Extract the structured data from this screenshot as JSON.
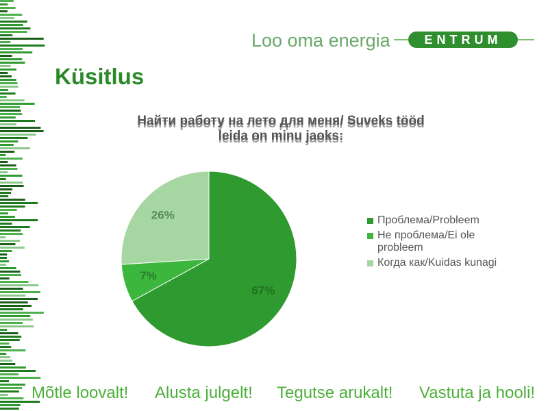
{
  "header": {
    "tagline": "Loo oma energia",
    "logo": "ENTRUM"
  },
  "slide_title": "Küsitlus",
  "chart_data": {
    "type": "pie",
    "title": "Найти работу на лето для меня/ Suveks tööd leida on minu jaoks:",
    "categories": [
      "Проблема/Probleem",
      "Не проблема/Ei ole probleem",
      "Когда как/Kuidas kunagi"
    ],
    "values": [
      67,
      7,
      26
    ],
    "value_labels": [
      "67%",
      "7%",
      "26%"
    ],
    "colors": [
      "#2f9a2f",
      "#3cb63c",
      "#a6d6a2"
    ],
    "legend": "right"
  },
  "footer": [
    "Mõtle loovalt!",
    "Alusta julgelt!",
    "Tegutse arukalt!",
    "Vastuta ja hooli!"
  ]
}
